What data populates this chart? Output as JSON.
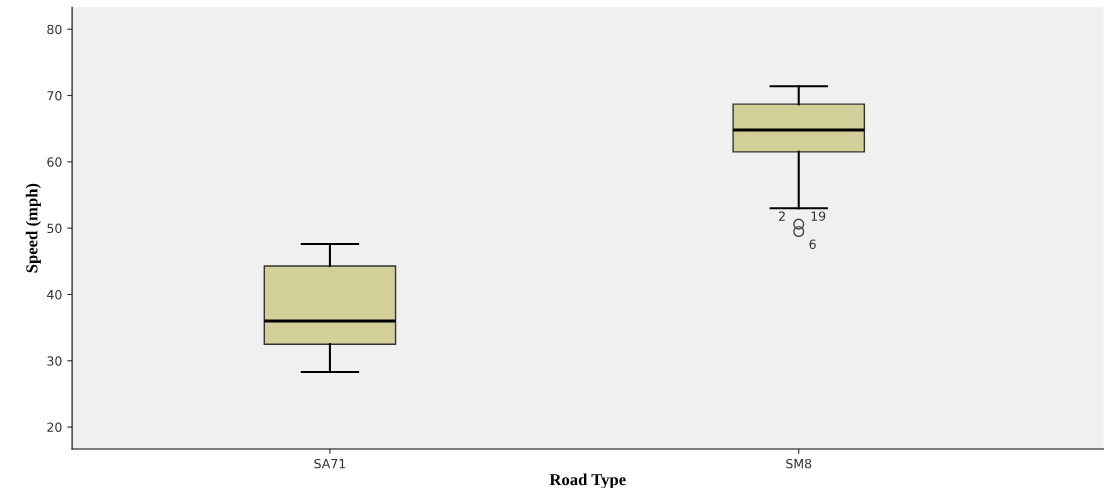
{
  "chart_data": {
    "type": "box",
    "xlabel": "Road Type",
    "ylabel": "Speed (mph)",
    "categories": [
      "SA71",
      "SM8"
    ],
    "boxes": [
      {
        "low": 28.3,
        "q1": 32.5,
        "median": 36.0,
        "q3": 44.3,
        "high": 47.6
      },
      {
        "low": 53.0,
        "q1": 61.5,
        "median": 64.8,
        "q3": 68.7,
        "high": 71.4,
        "outliers": [
          50.6,
          49.5
        ]
      }
    ],
    "color": "#d3cf99",
    "ylim": [
      16.7,
      83.3
    ],
    "yticks": [
      20,
      30,
      40,
      50,
      60,
      70,
      80
    ],
    "annotations": [
      "2",
      "19",
      "6"
    ],
    "grid": false,
    "legend": false
  }
}
